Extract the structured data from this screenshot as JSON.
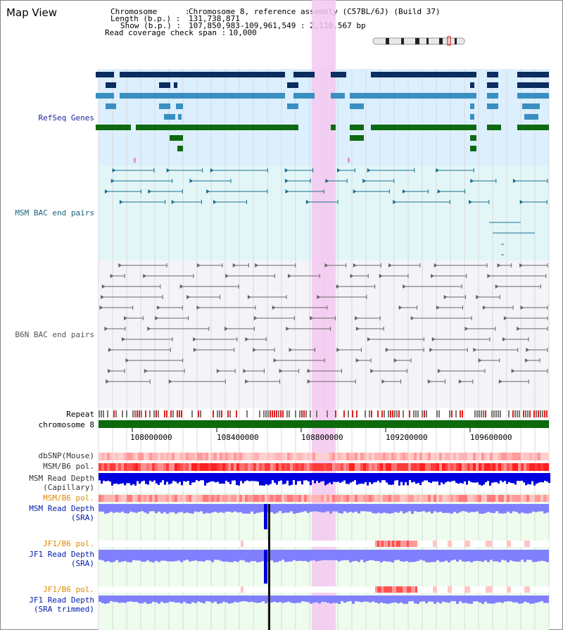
{
  "app": {
    "title": "Map View"
  },
  "header": {
    "chromosome_label": "Chromosome      :",
    "chromosome_value": "Chromosome 8, reference assembly (C57BL/6J) (Build 37)",
    "length_label": "Length (b.p.) :",
    "length_value": "131,738,871",
    "show_label": "Show (b.p.) :",
    "show_value": "107,850,983-109,961,549 : 2,110,567 bp",
    "coverage_label": "Read coverage check span :",
    "coverage_value": "10,000"
  },
  "tracks": {
    "refseq": "RefSeq Genes",
    "msm_bac": "MSM BAC end pairs",
    "b6n_bac": "B6N BAC end pairs",
    "repeat": "Repeat",
    "chromosome": "chromosome 8",
    "dbsnp": "dbSNP(Mouse)",
    "msm_b6_pol_1": "MSM/B6 pol.",
    "msm_read_depth_cap_1": "MSM Read Depth",
    "msm_read_depth_cap_2": "(Capillary)",
    "msm_b6_pol_2": "MSM/B6 pol.",
    "msm_read_depth_sra_1": "MSM Read Depth",
    "msm_read_depth_sra_2": "(SRA)",
    "jf1_b6_pol_1": "JF1/B6 pol.",
    "jf1_read_depth_sra_1": "JF1 Read Depth",
    "jf1_read_depth_sra_2": "(SRA)",
    "jf1_b6_pol_2": "JF1/B6 pol.",
    "jf1_read_depth_trim_1": "JF1 Read Depth",
    "jf1_read_depth_trim_2": "(SRA trimmed)"
  },
  "axis": {
    "ticks": [
      "108000000",
      "108400000",
      "108800000",
      "109200000",
      "109600000"
    ]
  },
  "colors": {
    "refseq_bg": "#dcefff",
    "msm_bg": "#e2f6f8",
    "b6n_bg": "#f4f4f8",
    "highlight": "#f5c8f0",
    "navy_gene": "#0b2d60",
    "teal_gene": "#3a8fc0",
    "green_gene": "#0e6a10",
    "chrom_bar": "#0c6a0c",
    "depth_blue": "#0000e0",
    "depth_light": "#8080ff",
    "pol_red": "#ff3030",
    "pol_pink": "#ffb0b0"
  }
}
